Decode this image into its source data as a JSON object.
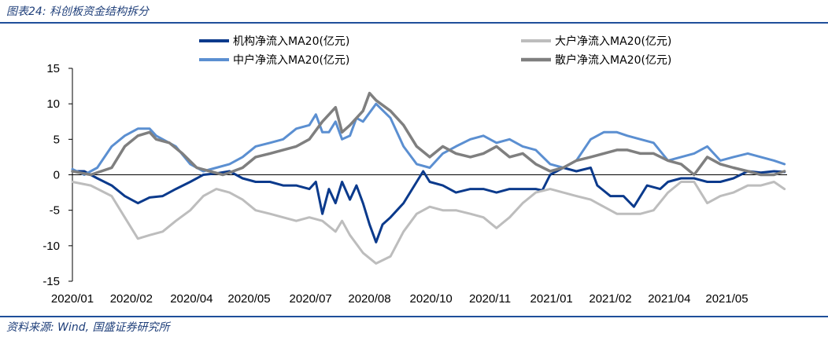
{
  "figure": {
    "title": "图表24: 科创板资金结构拆分",
    "source": "资料来源: Wind, 国盛证券研究所"
  },
  "colors": {
    "rule": "#1f4f9a",
    "title_text": "#1f3f7a"
  },
  "chart_data": {
    "type": "line",
    "title": "",
    "xlabel": "",
    "ylabel": "",
    "ylim": [
      -15,
      15
    ],
    "yticks": [
      15,
      10,
      5,
      0,
      -5,
      -10,
      -15
    ],
    "xlim": [
      "2020-01-01",
      "2021-06-30"
    ],
    "xtick_labels": [
      "2020/01",
      "2020/02",
      "2020/04",
      "2020/05",
      "2020/07",
      "2020/08",
      "2020/10",
      "2020/11",
      "2021/01",
      "2021/02",
      "2021/04",
      "2021/05"
    ],
    "xtick_dates": [
      "2020-01-01",
      "2020-02-15",
      "2020-04-01",
      "2020-05-15",
      "2020-07-01",
      "2020-08-15",
      "2020-10-01",
      "2020-11-15",
      "2021-01-01",
      "2021-02-15",
      "2021-04-01",
      "2021-05-15"
    ],
    "grid": false,
    "legend_position": "top",
    "series": [
      {
        "name": "机构净流入MA20(亿元)",
        "color": "#0b3a8c",
        "width": 3,
        "points": [
          [
            "2020-01-01",
            0.5
          ],
          [
            "2020-01-10",
            0.5
          ],
          [
            "2020-01-20",
            -0.5
          ],
          [
            "2020-01-31",
            -1.5
          ],
          [
            "2020-02-10",
            -3.0
          ],
          [
            "2020-02-20",
            -4.0
          ],
          [
            "2020-02-29",
            -3.2
          ],
          [
            "2020-03-10",
            -3.0
          ],
          [
            "2020-03-20",
            -2.0
          ],
          [
            "2020-03-31",
            -1.0
          ],
          [
            "2020-04-10",
            0.0
          ],
          [
            "2020-04-20",
            0.2
          ],
          [
            "2020-04-30",
            0.5
          ],
          [
            "2020-05-10",
            -0.5
          ],
          [
            "2020-05-20",
            -1.0
          ],
          [
            "2020-05-31",
            -1.0
          ],
          [
            "2020-06-10",
            -1.5
          ],
          [
            "2020-06-20",
            -1.5
          ],
          [
            "2020-06-30",
            -2.0
          ],
          [
            "2020-07-05",
            -1.0
          ],
          [
            "2020-07-10",
            -5.5
          ],
          [
            "2020-07-15",
            -2.0
          ],
          [
            "2020-07-20",
            -4.0
          ],
          [
            "2020-07-25",
            -1.0
          ],
          [
            "2020-07-31",
            -3.5
          ],
          [
            "2020-08-05",
            -1.5
          ],
          [
            "2020-08-10",
            -4.0
          ],
          [
            "2020-08-15",
            -7.0
          ],
          [
            "2020-08-20",
            -9.5
          ],
          [
            "2020-08-25",
            -7.0
          ],
          [
            "2020-08-31",
            -6.0
          ],
          [
            "2020-09-10",
            -4.0
          ],
          [
            "2020-09-20",
            -1.0
          ],
          [
            "2020-09-25",
            0.5
          ],
          [
            "2020-09-30",
            -1.0
          ],
          [
            "2020-10-10",
            -1.5
          ],
          [
            "2020-10-20",
            -2.5
          ],
          [
            "2020-10-31",
            -2.0
          ],
          [
            "2020-11-10",
            -2.0
          ],
          [
            "2020-11-20",
            -2.5
          ],
          [
            "2020-11-30",
            -2.0
          ],
          [
            "2020-12-10",
            -2.0
          ],
          [
            "2020-12-20",
            -2.0
          ],
          [
            "2020-12-25",
            -2.2
          ],
          [
            "2020-12-31",
            0.0
          ],
          [
            "2021-01-10",
            1.0
          ],
          [
            "2021-01-20",
            0.5
          ],
          [
            "2021-01-31",
            1.0
          ],
          [
            "2021-02-05",
            -1.5
          ],
          [
            "2021-02-15",
            -3.0
          ],
          [
            "2021-02-25",
            -3.0
          ],
          [
            "2021-03-05",
            -4.5
          ],
          [
            "2021-03-15",
            -1.5
          ],
          [
            "2021-03-25",
            -2.0
          ],
          [
            "2021-03-31",
            -1.0
          ],
          [
            "2021-04-10",
            -0.5
          ],
          [
            "2021-04-20",
            -0.5
          ],
          [
            "2021-04-30",
            -1.0
          ],
          [
            "2021-05-10",
            -1.0
          ],
          [
            "2021-05-20",
            -0.5
          ],
          [
            "2021-05-31",
            0.5
          ],
          [
            "2021-06-10",
            0.3
          ],
          [
            "2021-06-20",
            0.5
          ],
          [
            "2021-06-28",
            0.4
          ]
        ]
      },
      {
        "name": "大户净流入MA20(亿元)",
        "color": "#bdbdbd",
        "width": 3,
        "points": [
          [
            "2020-01-01",
            -1.0
          ],
          [
            "2020-01-15",
            -1.5
          ],
          [
            "2020-01-31",
            -3.0
          ],
          [
            "2020-02-10",
            -6.0
          ],
          [
            "2020-02-20",
            -9.0
          ],
          [
            "2020-02-29",
            -8.5
          ],
          [
            "2020-03-10",
            -8.0
          ],
          [
            "2020-03-20",
            -6.5
          ],
          [
            "2020-03-31",
            -5.0
          ],
          [
            "2020-04-10",
            -3.0
          ],
          [
            "2020-04-20",
            -2.0
          ],
          [
            "2020-04-30",
            -2.5
          ],
          [
            "2020-05-10",
            -3.5
          ],
          [
            "2020-05-20",
            -5.0
          ],
          [
            "2020-05-31",
            -5.5
          ],
          [
            "2020-06-10",
            -6.0
          ],
          [
            "2020-06-20",
            -6.5
          ],
          [
            "2020-06-30",
            -6.0
          ],
          [
            "2020-07-10",
            -6.5
          ],
          [
            "2020-07-20",
            -8.0
          ],
          [
            "2020-07-25",
            -6.5
          ],
          [
            "2020-07-31",
            -8.5
          ],
          [
            "2020-08-10",
            -11.0
          ],
          [
            "2020-08-20",
            -12.5
          ],
          [
            "2020-08-31",
            -11.5
          ],
          [
            "2020-09-10",
            -8.0
          ],
          [
            "2020-09-20",
            -5.5
          ],
          [
            "2020-09-30",
            -4.5
          ],
          [
            "2020-10-10",
            -5.0
          ],
          [
            "2020-10-20",
            -5.0
          ],
          [
            "2020-10-31",
            -5.5
          ],
          [
            "2020-11-10",
            -6.0
          ],
          [
            "2020-11-20",
            -7.5
          ],
          [
            "2020-11-30",
            -6.0
          ],
          [
            "2020-12-10",
            -4.0
          ],
          [
            "2020-12-20",
            -2.5
          ],
          [
            "2020-12-31",
            -2.0
          ],
          [
            "2021-01-10",
            -2.5
          ],
          [
            "2021-01-20",
            -3.0
          ],
          [
            "2021-01-31",
            -3.5
          ],
          [
            "2021-02-10",
            -4.5
          ],
          [
            "2021-02-20",
            -5.5
          ],
          [
            "2021-02-28",
            -5.5
          ],
          [
            "2021-03-10",
            -5.5
          ],
          [
            "2021-03-20",
            -5.0
          ],
          [
            "2021-03-31",
            -2.5
          ],
          [
            "2021-04-10",
            -1.0
          ],
          [
            "2021-04-20",
            -1.0
          ],
          [
            "2021-04-30",
            -4.0
          ],
          [
            "2021-05-10",
            -3.0
          ],
          [
            "2021-05-20",
            -2.5
          ],
          [
            "2021-05-31",
            -1.5
          ],
          [
            "2021-06-10",
            -1.5
          ],
          [
            "2021-06-20",
            -1.0
          ],
          [
            "2021-06-28",
            -2.0
          ]
        ]
      },
      {
        "name": "中户净流入MA20(亿元)",
        "color": "#5b8fd1",
        "width": 3,
        "points": [
          [
            "2020-01-01",
            0.8
          ],
          [
            "2020-01-10",
            0.0
          ],
          [
            "2020-01-20",
            1.0
          ],
          [
            "2020-01-31",
            4.0
          ],
          [
            "2020-02-10",
            5.5
          ],
          [
            "2020-02-20",
            6.5
          ],
          [
            "2020-02-29",
            6.5
          ],
          [
            "2020-03-05",
            5.5
          ],
          [
            "2020-03-10",
            5.0
          ],
          [
            "2020-03-20",
            4.0
          ],
          [
            "2020-03-31",
            1.5
          ],
          [
            "2020-04-10",
            0.5
          ],
          [
            "2020-04-20",
            1.0
          ],
          [
            "2020-04-30",
            1.5
          ],
          [
            "2020-05-10",
            2.5
          ],
          [
            "2020-05-20",
            4.0
          ],
          [
            "2020-05-31",
            4.5
          ],
          [
            "2020-06-10",
            5.0
          ],
          [
            "2020-06-20",
            6.5
          ],
          [
            "2020-06-30",
            7.0
          ],
          [
            "2020-07-05",
            8.5
          ],
          [
            "2020-07-10",
            6.0
          ],
          [
            "2020-07-15",
            6.0
          ],
          [
            "2020-07-20",
            7.5
          ],
          [
            "2020-07-25",
            5.0
          ],
          [
            "2020-07-31",
            5.5
          ],
          [
            "2020-08-05",
            8.0
          ],
          [
            "2020-08-10",
            7.5
          ],
          [
            "2020-08-20",
            10.0
          ],
          [
            "2020-08-31",
            8.0
          ],
          [
            "2020-09-10",
            4.0
          ],
          [
            "2020-09-20",
            1.5
          ],
          [
            "2020-09-30",
            1.0
          ],
          [
            "2020-10-10",
            3.0
          ],
          [
            "2020-10-20",
            4.0
          ],
          [
            "2020-10-31",
            5.0
          ],
          [
            "2020-11-10",
            5.5
          ],
          [
            "2020-11-20",
            4.5
          ],
          [
            "2020-11-30",
            5.0
          ],
          [
            "2020-12-10",
            4.0
          ],
          [
            "2020-12-20",
            3.5
          ],
          [
            "2020-12-31",
            1.5
          ],
          [
            "2021-01-10",
            1.0
          ],
          [
            "2021-01-20",
            2.0
          ],
          [
            "2021-01-31",
            5.0
          ],
          [
            "2021-02-10",
            6.0
          ],
          [
            "2021-02-20",
            6.0
          ],
          [
            "2021-02-28",
            5.5
          ],
          [
            "2021-03-10",
            5.0
          ],
          [
            "2021-03-20",
            4.5
          ],
          [
            "2021-03-31",
            2.0
          ],
          [
            "2021-04-10",
            2.5
          ],
          [
            "2021-04-20",
            3.0
          ],
          [
            "2021-04-30",
            4.0
          ],
          [
            "2021-05-10",
            2.0
          ],
          [
            "2021-05-20",
            2.5
          ],
          [
            "2021-05-31",
            3.0
          ],
          [
            "2021-06-10",
            2.5
          ],
          [
            "2021-06-20",
            2.0
          ],
          [
            "2021-06-28",
            1.5
          ]
        ]
      },
      {
        "name": "散户净流入MA20(亿元)",
        "color": "#7f7f7f",
        "width": 3.5,
        "points": [
          [
            "2020-01-01",
            0.5
          ],
          [
            "2020-01-15",
            0.0
          ],
          [
            "2020-01-31",
            1.0
          ],
          [
            "2020-02-10",
            4.0
          ],
          [
            "2020-02-20",
            5.5
          ],
          [
            "2020-02-29",
            6.0
          ],
          [
            "2020-03-05",
            5.0
          ],
          [
            "2020-03-15",
            4.5
          ],
          [
            "2020-03-25",
            3.0
          ],
          [
            "2020-04-05",
            1.0
          ],
          [
            "2020-04-15",
            0.5
          ],
          [
            "2020-04-25",
            0.0
          ],
          [
            "2020-04-30",
            0.3
          ],
          [
            "2020-05-10",
            1.0
          ],
          [
            "2020-05-20",
            2.5
          ],
          [
            "2020-05-31",
            3.0
          ],
          [
            "2020-06-10",
            3.5
          ],
          [
            "2020-06-20",
            4.0
          ],
          [
            "2020-06-30",
            5.0
          ],
          [
            "2020-07-10",
            7.5
          ],
          [
            "2020-07-20",
            9.5
          ],
          [
            "2020-07-25",
            6.0
          ],
          [
            "2020-07-31",
            7.0
          ],
          [
            "2020-08-10",
            9.0
          ],
          [
            "2020-08-15",
            11.5
          ],
          [
            "2020-08-20",
            10.5
          ],
          [
            "2020-08-31",
            9.0
          ],
          [
            "2020-09-10",
            7.0
          ],
          [
            "2020-09-20",
            4.0
          ],
          [
            "2020-09-30",
            2.5
          ],
          [
            "2020-10-10",
            4.0
          ],
          [
            "2020-10-20",
            3.0
          ],
          [
            "2020-10-31",
            2.5
          ],
          [
            "2020-11-10",
            3.0
          ],
          [
            "2020-11-20",
            4.0
          ],
          [
            "2020-11-30",
            2.5
          ],
          [
            "2020-12-10",
            3.0
          ],
          [
            "2020-12-20",
            1.5
          ],
          [
            "2020-12-31",
            0.5
          ],
          [
            "2021-01-10",
            1.0
          ],
          [
            "2021-01-20",
            2.0
          ],
          [
            "2021-01-31",
            2.5
          ],
          [
            "2021-02-10",
            3.0
          ],
          [
            "2021-02-20",
            3.5
          ],
          [
            "2021-02-28",
            3.5
          ],
          [
            "2021-03-10",
            3.0
          ],
          [
            "2021-03-20",
            3.0
          ],
          [
            "2021-03-31",
            2.0
          ],
          [
            "2021-04-10",
            1.5
          ],
          [
            "2021-04-20",
            0.0
          ],
          [
            "2021-04-30",
            2.5
          ],
          [
            "2021-05-10",
            1.5
          ],
          [
            "2021-05-20",
            1.0
          ],
          [
            "2021-05-31",
            0.5
          ],
          [
            "2021-06-10",
            0.0
          ],
          [
            "2021-06-20",
            0.0
          ],
          [
            "2021-06-28",
            0.5
          ]
        ]
      }
    ]
  }
}
